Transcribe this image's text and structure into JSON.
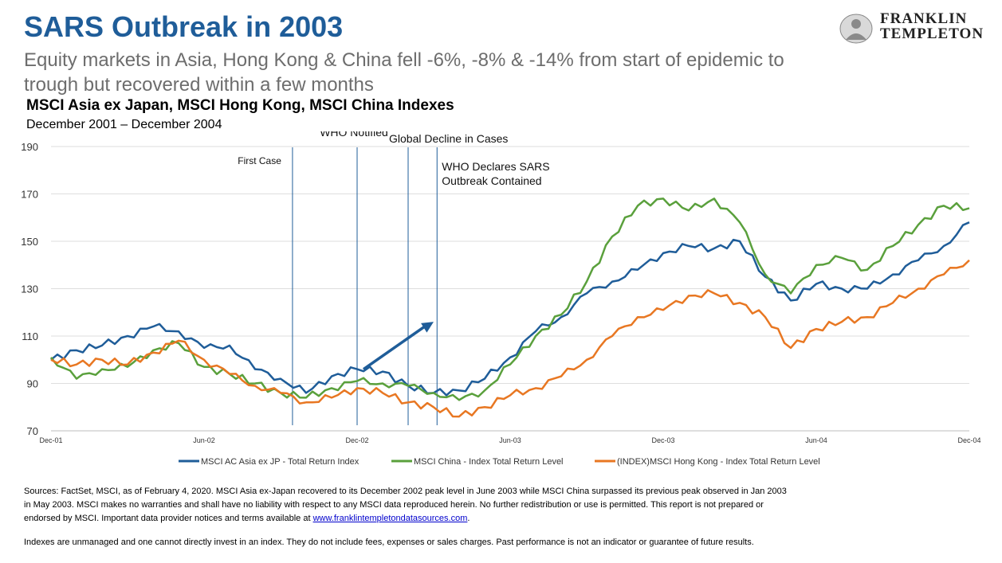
{
  "header": {
    "title": "SARS Outbreak in 2003",
    "subtitle": "Equity markets in Asia, Hong Kong & China fell -6%, -8% & -14% from start of epidemic to trough but recovered within a few months",
    "logo_line1": "FRANKLIN",
    "logo_line2": "TEMPLETON"
  },
  "chart_data": {
    "type": "line",
    "title": "MSCI Asia ex Japan, MSCI Hong Kong, MSCI China Indexes",
    "subtitle": "December 2001 – December 2004",
    "ylim": [
      70,
      190
    ],
    "yticks": [
      70,
      90,
      110,
      130,
      150,
      170,
      190
    ],
    "xlim": [
      "2001-12",
      "2004-12"
    ],
    "xticks": [
      {
        "x": "2001-12",
        "label": "Dec-01"
      },
      {
        "x": "2002-06",
        "label": "Jun-02"
      },
      {
        "x": "2002-12",
        "label": "Dec-02"
      },
      {
        "x": "2003-06",
        "label": "Jun-03"
      },
      {
        "x": "2003-12",
        "label": "Dec-03"
      },
      {
        "x": "2004-06",
        "label": "Jun-04"
      },
      {
        "x": "2004-12",
        "label": "Dec-04"
      }
    ],
    "grid": "horizontal",
    "legend_position": "bottom",
    "annotations": [
      {
        "x": "2002-09-15",
        "label": "First Case"
      },
      {
        "x": "2002-12",
        "label": "WHO Notified"
      },
      {
        "x": "2003-02",
        "label": "Global Decline in Cases"
      },
      {
        "x": "2003-03-05",
        "label_lines": [
          "WHO Declares SARS",
          "Outbreak Contained"
        ]
      }
    ],
    "trend_arrow": {
      "from": [
        "2002-12",
        96
      ],
      "to": [
        "2003-03",
        116
      ]
    },
    "series": [
      {
        "name": "MSCI AC Asia ex JP - Total Return Index",
        "color": "#1f5d99",
        "x": [
          "2001-12",
          "2002-01",
          "2002-02",
          "2002-03",
          "2002-04",
          "2002-05",
          "2002-06",
          "2002-07",
          "2002-08",
          "2002-09",
          "2002-10",
          "2002-11",
          "2002-12",
          "2003-01",
          "2003-02",
          "2003-03",
          "2003-04",
          "2003-05",
          "2003-06",
          "2003-07",
          "2003-08",
          "2003-09",
          "2003-10",
          "2003-11",
          "2003-12",
          "2004-01",
          "2004-02",
          "2004-03",
          "2004-04",
          "2004-05",
          "2004-06",
          "2004-07",
          "2004-08",
          "2004-09",
          "2004-10",
          "2004-11",
          "2004-12"
        ],
        "values": [
          100,
          104,
          106,
          110,
          114,
          112,
          105,
          106,
          96,
          92,
          86,
          93,
          96,
          95,
          89,
          86,
          87,
          92,
          101,
          112,
          118,
          128,
          133,
          138,
          145,
          148,
          147,
          150,
          135,
          125,
          132,
          130,
          130,
          136,
          142,
          148,
          158
        ]
      },
      {
        "name": "MSCI China - Index Total Return Level",
        "color": "#5aa03c",
        "x": [
          "2001-12",
          "2002-01",
          "2002-02",
          "2002-03",
          "2002-04",
          "2002-05",
          "2002-06",
          "2002-07",
          "2002-08",
          "2002-09",
          "2002-10",
          "2002-11",
          "2002-12",
          "2003-01",
          "2003-02",
          "2003-03",
          "2003-04",
          "2003-05",
          "2003-06",
          "2003-07",
          "2003-08",
          "2003-09",
          "2003-10",
          "2003-11",
          "2003-12",
          "2004-01",
          "2004-02",
          "2004-03",
          "2004-04",
          "2004-05",
          "2004-06",
          "2004-07",
          "2004-08",
          "2004-09",
          "2004-10",
          "2004-11",
          "2004-12"
        ],
        "values": [
          101,
          92,
          96,
          97,
          104,
          107,
          97,
          94,
          90,
          86,
          84,
          88,
          91,
          90,
          89,
          86,
          83,
          87,
          98,
          110,
          119,
          133,
          152,
          165,
          168,
          163,
          168,
          158,
          136,
          128,
          140,
          143,
          138,
          148,
          157,
          165,
          164
        ]
      },
      {
        "name": "(INDEX)MSCI Hong Kong - Index Total Return Level",
        "color": "#e87722",
        "x": [
          "2001-12",
          "2002-01",
          "2002-02",
          "2002-03",
          "2002-04",
          "2002-05",
          "2002-06",
          "2002-07",
          "2002-08",
          "2002-09",
          "2002-10",
          "2002-11",
          "2002-12",
          "2003-01",
          "2003-02",
          "2003-03",
          "2003-04",
          "2003-05",
          "2003-06",
          "2003-07",
          "2003-08",
          "2003-09",
          "2003-10",
          "2003-11",
          "2003-12",
          "2004-01",
          "2004-02",
          "2004-03",
          "2004-04",
          "2004-05",
          "2004-06",
          "2004-07",
          "2004-08",
          "2004-09",
          "2004-10",
          "2004-11",
          "2004-12"
        ],
        "values": [
          100,
          98,
          100,
          98,
          103,
          108,
          100,
          94,
          89,
          86,
          82,
          84,
          88,
          86,
          82,
          80,
          76,
          80,
          85,
          88,
          93,
          100,
          110,
          118,
          121,
          127,
          128,
          124,
          118,
          105,
          113,
          116,
          118,
          124,
          130,
          136,
          142
        ]
      }
    ]
  },
  "footer": {
    "sources_text": "Sources: FactSet, MSCI, as of February 4, 2020. MSCI Asia ex-Japan recovered to its December 2002 peak level in June 2003 while MSCI China surpassed its previous peak observed in Jan 2003 in May 2003. MSCI makes no warranties and shall have no liability with respect to any MSCI data reproduced herein. No further redistribution or use is permitted. This report is not prepared or endorsed by MSCI. Important data provider notices and terms available at ",
    "sources_link": "www.franklintempletondatasources.com",
    "sources_end": ".",
    "disclaimer": "Indexes are unmanaged and one cannot directly invest in an index. They do not include fees, expenses or sales charges. Past performance is not an indicator or guarantee of future results."
  }
}
